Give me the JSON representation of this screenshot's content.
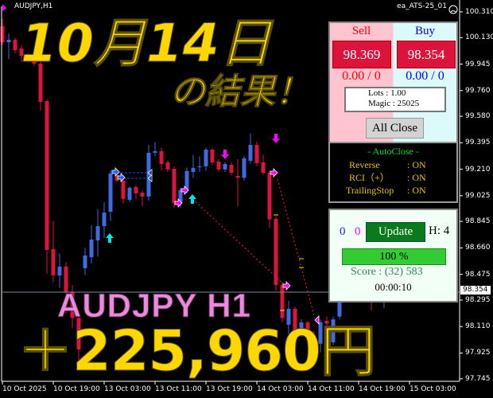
{
  "header": {
    "symbol_timeframe": "AUDJPY,H1",
    "ea_name": "ea_ATS-25_01",
    "ea_status_icon": "sad-face-icon"
  },
  "overlay": {
    "date_title": "10月14日",
    "result_title": "の結果！",
    "pair_label": "AUDJPY H1",
    "profit": "＋225,960円"
  },
  "trade_panel": {
    "sell_label": "Sell",
    "buy_label": "Buy",
    "sell_price": "98.369",
    "buy_price": "98.354",
    "sell_pnl": "0.00 / 0",
    "buy_pnl": "0.00 / 0",
    "lots": "Lots   : 1.00",
    "magic": "Magic : 25025",
    "all_close": "All Close"
  },
  "autoclose_panel": {
    "title": "- AutoClose -",
    "rows": [
      {
        "label": "Reverse",
        "value": ": ON"
      },
      {
        "label": "RCI（+）",
        "value": ": ON"
      },
      {
        "label": "TrailingStop",
        "value": ": ON"
      }
    ]
  },
  "status_panel": {
    "count_blue": "0",
    "count_magenta": "0",
    "update": "Update",
    "h": "H: 4",
    "progress_text": "100 %",
    "progress": 100,
    "score": "Score : (32) 583",
    "timer": "00:00:10"
  },
  "price_axis": [
    "100.310",
    "100.130",
    "99.945",
    "99.760",
    "99.580",
    "99.395",
    "99.210",
    "99.025",
    "98.845",
    "98.660",
    "98.475",
    "98.295",
    "98.110",
    "97.925",
    "97.745"
  ],
  "current_price": "98.354",
  "time_axis": [
    "10 Oct 2025",
    "10 Oct 19:00",
    "13 Oct 03:00",
    "13 Oct 11:00",
    "13 Oct 19:00",
    "14 Oct 03:00",
    "14 Oct 11:00",
    "14 Oct 19:00",
    "15 Oct 03:00"
  ],
  "colors": {
    "bull": "#4169e1",
    "bear": "#dc143c",
    "accent_yellow": "#ffd700",
    "pair_pink": "#ee88dd"
  },
  "chart": {
    "candles_ohlc": [
      [
        100.209,
        100.26,
        100.08,
        100.098
      ],
      [
        100.098,
        100.16,
        99.98,
        100.115
      ],
      [
        100.115,
        100.13,
        100.02,
        100.042
      ],
      [
        100.054,
        100.08,
        99.96,
        100.003
      ],
      [
        100.003,
        100.02,
        99.97,
        99.99
      ],
      [
        99.99,
        100.0,
        99.93,
        99.948
      ],
      [
        99.948,
        99.96,
        99.62,
        99.681
      ],
      [
        99.686,
        99.7,
        98.48,
        98.646
      ],
      [
        98.651,
        98.85,
        98.42,
        98.467
      ],
      [
        98.467,
        98.62,
        98.38,
        98.529
      ],
      [
        98.529,
        98.56,
        98.2,
        98.351
      ],
      [
        98.351,
        98.4,
        98.1,
        98.17
      ],
      [
        98.17,
        98.22,
        97.84,
        97.95
      ],
      [
        98.518,
        98.66,
        98.47,
        98.607
      ],
      [
        98.595,
        98.82,
        98.55,
        98.718
      ],
      [
        98.712,
        98.93,
        98.6,
        98.812
      ],
      [
        98.812,
        98.98,
        98.73,
        98.907
      ],
      [
        98.913,
        99.2,
        98.85,
        99.18
      ],
      [
        99.169,
        99.2,
        99.12,
        99.13
      ],
      [
        99.13,
        99.17,
        98.97,
        99.002
      ],
      [
        98.996,
        99.09,
        98.98,
        99.08
      ],
      [
        99.085,
        99.1,
        99.0,
        99.041
      ],
      [
        99.046,
        99.06,
        98.95,
        99.019
      ],
      [
        99.019,
        99.38,
        98.99,
        99.325
      ],
      [
        99.325,
        99.4,
        99.3,
        99.336
      ],
      [
        99.336,
        99.36,
        99.2,
        99.247
      ],
      [
        99.258,
        99.27,
        99.19,
        99.208
      ],
      [
        99.213,
        99.23,
        98.94,
        98.974
      ],
      [
        98.974,
        99.08,
        98.94,
        99.063
      ],
      [
        99.063,
        99.22,
        99.04,
        99.197
      ],
      [
        99.191,
        99.31,
        99.15,
        99.219
      ],
      [
        99.224,
        99.3,
        99.19,
        99.23
      ],
      [
        99.23,
        99.36,
        99.2,
        99.347
      ],
      [
        99.347,
        99.36,
        99.24,
        99.258
      ],
      [
        99.263,
        99.28,
        99.19,
        99.208
      ],
      [
        99.208,
        99.26,
        99.19,
        99.247
      ],
      [
        99.241,
        99.26,
        99.17,
        99.185
      ],
      [
        99.163,
        99.28,
        98.95,
        99.15
      ],
      [
        99.15,
        99.3,
        99.13,
        99.286
      ],
      [
        99.269,
        99.46,
        99.25,
        99.38
      ],
      [
        99.38,
        99.4,
        99.23,
        99.252
      ],
      [
        99.258,
        99.31,
        99.17,
        99.185
      ],
      [
        99.185,
        99.2,
        98.8,
        98.86
      ],
      [
        98.863,
        98.88,
        98.36,
        98.4
      ],
      [
        98.4,
        98.42,
        98.14,
        98.17
      ],
      [
        98.123,
        98.29,
        98.06,
        98.234
      ],
      [
        98.234,
        98.25,
        98.05,
        98.072
      ],
      [
        98.072,
        98.16,
        98.04,
        98.139
      ],
      [
        98.139,
        98.15,
        97.98,
        98.05
      ],
      [
        98.05,
        98.08,
        97.93,
        97.96
      ],
      [
        97.99,
        98.16,
        97.93,
        98.14
      ],
      [
        98.15,
        98.18,
        98.05,
        98.13
      ],
      [
        98.0,
        98.18,
        97.98,
        98.16
      ],
      [
        98.18,
        98.33,
        98.16,
        98.3
      ],
      [
        98.3,
        98.4,
        98.28,
        98.38
      ],
      [
        98.38,
        98.42,
        98.33,
        98.36
      ],
      [
        98.36,
        98.4,
        98.3,
        98.34
      ],
      [
        98.34,
        98.42,
        98.31,
        98.39
      ],
      [
        98.39,
        98.41,
        98.22,
        98.37
      ],
      [
        98.37,
        98.4,
        98.32,
        98.35
      ],
      [
        98.35,
        98.38,
        98.24,
        98.354
      ]
    ]
  }
}
